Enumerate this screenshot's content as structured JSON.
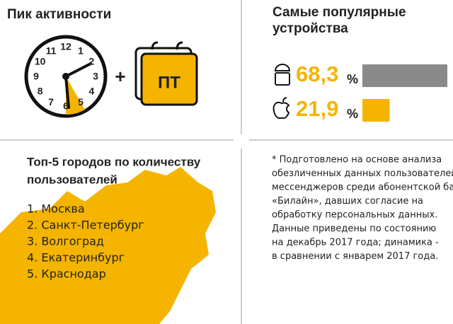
{
  "activity": {
    "title": "Пик активности",
    "clock_numbers": [
      "12",
      "1",
      "2",
      "3",
      "4",
      "5",
      "6",
      "7",
      "8",
      "9",
      "10",
      "11"
    ],
    "plus": "+",
    "day": "ПТ"
  },
  "devices": {
    "title_lines": [
      "Самые популярные",
      "устройства"
    ],
    "items": [
      {
        "value": 68.3,
        "label": "68,3",
        "unit": "%",
        "color": "#8a8a8a"
      },
      {
        "value": 21.9,
        "label": "21,9",
        "unit": "%",
        "color": "#f5b400"
      }
    ]
  },
  "cities": {
    "title_lines": [
      "Топ-5 городов по количеству",
      "пользователей"
    ],
    "items": [
      "1. Москва",
      "2. Санкт-Петербург",
      "3. Волгоград",
      "4. Екатеринбург",
      "5. Краснодар"
    ]
  },
  "footnote": {
    "lines": [
      "* Подготовлено на основе анализа",
      "обезличенных данных пользователей",
      "мессенджеров среди абонентской базы",
      "«Билайн», давших согласие на",
      "обработку персональных данных.",
      "Данные приведены по состоянию",
      "на декабрь 2017 года; динамика -",
      "в сравнении с январем 2017 года."
    ]
  }
}
